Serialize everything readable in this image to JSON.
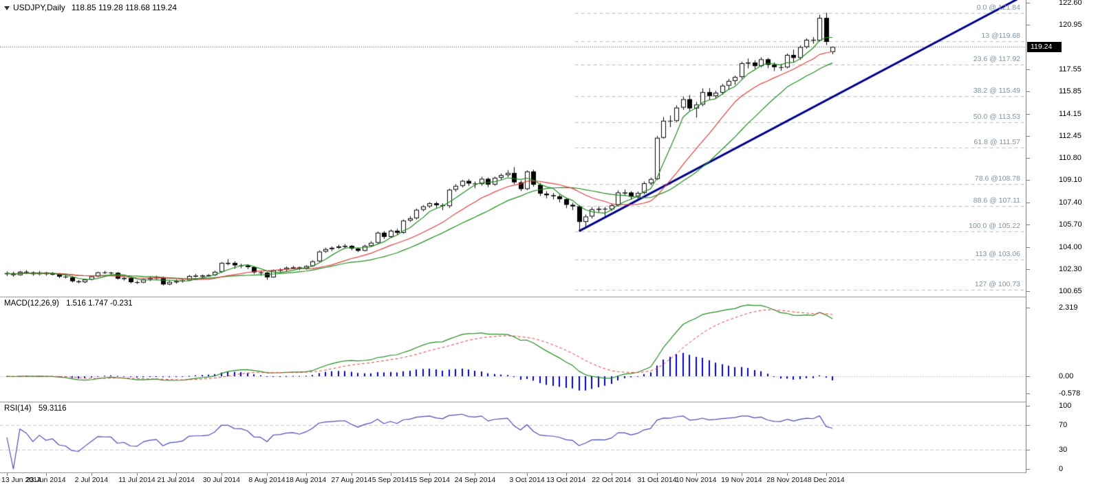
{
  "main": {
    "symbol_label": "USDJPY,Daily",
    "ohlc_label": "118.85 119.28 118.68 119.24",
    "current_price_label": "119.24"
  },
  "macd": {
    "label": "MACD(12,26,9)",
    "values_text": "1.516 1.747 -0.231"
  },
  "rsi": {
    "label": "RSI(14)",
    "value_text": "59.3116"
  },
  "colors": {
    "background": "#ffffff",
    "panel_border": "#9a9a9a",
    "axis_text": "#000000",
    "candle_outline": "#000000",
    "bull_body": "#ffffff",
    "bear_body": "#000000",
    "ma_green": "#1f8a1f",
    "ma_red": "#e03c3c",
    "trendline": "#00008c",
    "fib_line": "#b9b9b9",
    "fib_label": "#7e93a2",
    "macd_histogram": "#0000c0",
    "macd_line": "#1f8a1f",
    "macd_signal": "#e03c3c",
    "rsi_line": "#4a4ab4",
    "indicator_level": "#c8c8c8",
    "current_price_bg": "#000000",
    "current_price_text": "#ffffff",
    "bid_line": "#404040"
  },
  "chart_data": {
    "type": "candlestick",
    "title": "USDJPY,Daily",
    "symbol": "USDJPY",
    "timeframe": "Daily",
    "last_bar_ohlc": {
      "open": 118.85,
      "high": 119.28,
      "low": 118.68,
      "close": 119.24
    },
    "price_axis": {
      "min": 100.65,
      "max": 122.6,
      "current_price": 119.24,
      "tick_labels": [
        "122.60",
        "120.95",
        "117.55",
        "115.85",
        "114.15",
        "112.45",
        "110.80",
        "109.10",
        "107.40",
        "105.70",
        "104.00",
        "102.30",
        "100.65"
      ]
    },
    "time_axis_labels": [
      {
        "label": "13 Jun 2014",
        "index": 0
      },
      {
        "label": "23 Jun 2014",
        "index": 6
      },
      {
        "label": "2 Jul 2014",
        "index": 13
      },
      {
        "label": "11 Jul 2014",
        "index": 20
      },
      {
        "label": "21 Jul 2014",
        "index": 26
      },
      {
        "label": "30 Jul 2014",
        "index": 33
      },
      {
        "label": "8 Aug 2014",
        "index": 40
      },
      {
        "label": "18 Aug 2014",
        "index": 46
      },
      {
        "label": "27 Aug 2014",
        "index": 53
      },
      {
        "label": "5 Sep 2014",
        "index": 59
      },
      {
        "label": "15 Sep 2014",
        "index": 65
      },
      {
        "label": "24 Sep 2014",
        "index": 72
      },
      {
        "label": "3 Oct 2014",
        "index": 80
      },
      {
        "label": "13 Oct 2014",
        "index": 86
      },
      {
        "label": "22 Oct 2014",
        "index": 93
      },
      {
        "label": "31 Oct 2014",
        "index": 100
      },
      {
        "label": "10 Nov 2014",
        "index": 106
      },
      {
        "label": "19 Nov 2014",
        "index": 113
      },
      {
        "label": "28 Nov 2014",
        "index": 120
      },
      {
        "label": "8 Dec 2014",
        "index": 126
      }
    ],
    "moving_averages": [
      {
        "name": "ma-slow",
        "period": 21,
        "color": "#1f8a1f"
      },
      {
        "name": "ma-mid",
        "period": 13,
        "color": "#e03c3c"
      },
      {
        "name": "ma-fast",
        "period": 5,
        "color": "#1f8a1f"
      }
    ],
    "fibonacci_retracement": {
      "start_candle_index": 88,
      "levels": [
        {
          "label": "0.0 @ 121.84",
          "price": 121.84
        },
        {
          "label": "13 @119.68",
          "price": 119.68
        },
        {
          "label": "23.6 @ 117.92",
          "price": 117.92
        },
        {
          "label": "38.2 @ 115.49",
          "price": 115.49
        },
        {
          "label": "50.0 @ 113.53",
          "price": 113.53
        },
        {
          "label": "61.8 @ 111.57",
          "price": 111.57
        },
        {
          "label": "78.6 @108.78",
          "price": 108.78
        },
        {
          "label": "88.6 @ 107.11",
          "price": 107.11
        },
        {
          "label": "100.0 @ 105.22",
          "price": 105.22
        },
        {
          "label": "113 @ 103.06",
          "price": 103.06
        },
        {
          "label": "127 @ 100.73",
          "price": 100.73
        }
      ]
    },
    "trendline": {
      "from": {
        "candle_index": 88,
        "price": 105.22
      },
      "to": {
        "candle_index": 154,
        "price": 122.5
      },
      "color": "#00008c",
      "width": 3
    },
    "indicators": [
      {
        "type": "MACD",
        "params": [
          12,
          26,
          9
        ],
        "label": "MACD(12,26,9)",
        "current_values": [
          1.516,
          1.747,
          -0.231
        ],
        "axis_tick_labels": [
          "2.319",
          "0.00",
          "-0.578"
        ]
      },
      {
        "type": "RSI",
        "params": [
          14
        ],
        "label": "RSI(14)",
        "current_value": 59.3116,
        "levels": [
          70,
          30
        ],
        "axis_tick_labels": [
          "100",
          "70",
          "30",
          "0"
        ]
      }
    ],
    "candles_ohlc": [
      [
        101.95,
        102.15,
        101.8,
        102.02
      ],
      [
        102.02,
        102.12,
        101.75,
        101.87
      ],
      [
        101.87,
        102.2,
        101.82,
        102.13
      ],
      [
        102.13,
        102.25,
        101.95,
        102.08
      ],
      [
        102.08,
        102.15,
        101.82,
        101.94
      ],
      [
        101.94,
        102.18,
        101.85,
        102.07
      ],
      [
        102.07,
        102.12,
        101.83,
        101.94
      ],
      [
        101.94,
        102.1,
        101.85,
        101.98
      ],
      [
        101.98,
        102.04,
        101.64,
        101.75
      ],
      [
        101.75,
        101.88,
        101.61,
        101.7
      ],
      [
        101.7,
        101.78,
        101.31,
        101.4
      ],
      [
        101.4,
        101.5,
        101.24,
        101.33
      ],
      [
        101.33,
        101.6,
        101.26,
        101.53
      ],
      [
        101.53,
        101.85,
        101.47,
        101.77
      ],
      [
        101.77,
        102.13,
        101.72,
        102.08
      ],
      [
        102.08,
        102.18,
        101.97,
        102.06
      ],
      [
        102.06,
        102.12,
        101.92,
        102.05
      ],
      [
        102.05,
        102.1,
        101.52,
        101.6
      ],
      [
        101.6,
        101.73,
        101.45,
        101.65
      ],
      [
        101.65,
        101.7,
        101.24,
        101.33
      ],
      [
        101.33,
        101.45,
        101.19,
        101.3
      ],
      [
        101.3,
        101.6,
        101.25,
        101.56
      ],
      [
        101.56,
        101.75,
        101.42,
        101.66
      ],
      [
        101.66,
        101.82,
        101.55,
        101.7
      ],
      [
        101.7,
        101.76,
        101.08,
        101.16
      ],
      [
        101.16,
        101.45,
        101.09,
        101.35
      ],
      [
        101.35,
        101.53,
        101.22,
        101.4
      ],
      [
        101.4,
        101.55,
        101.29,
        101.46
      ],
      [
        101.46,
        101.88,
        101.4,
        101.8
      ],
      [
        101.8,
        101.96,
        101.7,
        101.83
      ],
      [
        101.83,
        101.92,
        101.66,
        101.84
      ],
      [
        101.84,
        101.94,
        101.74,
        101.87
      ],
      [
        101.87,
        102.2,
        101.8,
        102.12
      ],
      [
        102.12,
        102.87,
        102.04,
        102.8
      ],
      [
        102.8,
        103.09,
        102.62,
        102.8
      ],
      [
        102.8,
        102.93,
        102.35,
        102.61
      ],
      [
        102.61,
        102.74,
        102.4,
        102.6
      ],
      [
        102.6,
        102.7,
        102.32,
        102.48
      ],
      [
        102.48,
        102.55,
        101.96,
        102.08
      ],
      [
        102.08,
        102.18,
        101.82,
        102.06
      ],
      [
        102.06,
        102.12,
        101.51,
        101.7
      ],
      [
        101.7,
        102.3,
        101.68,
        102.24
      ],
      [
        102.24,
        102.39,
        102.1,
        102.28
      ],
      [
        102.28,
        102.53,
        102.16,
        102.43
      ],
      [
        102.43,
        102.57,
        102.31,
        102.46
      ],
      [
        102.46,
        102.52,
        102.25,
        102.36
      ],
      [
        102.36,
        102.63,
        102.28,
        102.56
      ],
      [
        102.56,
        103.0,
        102.5,
        102.92
      ],
      [
        102.92,
        103.75,
        102.86,
        103.66
      ],
      [
        103.66,
        103.96,
        103.56,
        103.85
      ],
      [
        103.85,
        104.05,
        103.7,
        103.95
      ],
      [
        103.95,
        104.19,
        103.86,
        104.05
      ],
      [
        104.05,
        104.23,
        103.93,
        104.1
      ],
      [
        104.1,
        104.16,
        103.76,
        103.89
      ],
      [
        103.89,
        103.97,
        103.62,
        103.72
      ],
      [
        103.72,
        104.18,
        103.68,
        104.09
      ],
      [
        104.09,
        104.45,
        104.02,
        104.33
      ],
      [
        104.33,
        105.18,
        104.26,
        105.1
      ],
      [
        105.1,
        105.22,
        104.62,
        104.78
      ],
      [
        104.78,
        105.35,
        104.7,
        105.25
      ],
      [
        105.25,
        105.4,
        104.92,
        105.09
      ],
      [
        105.09,
        106.1,
        105.02,
        106.02
      ],
      [
        106.02,
        106.36,
        105.92,
        106.2
      ],
      [
        106.2,
        106.94,
        106.1,
        106.84
      ],
      [
        106.84,
        107.2,
        106.72,
        107.1
      ],
      [
        107.1,
        107.42,
        106.98,
        107.34
      ],
      [
        107.34,
        107.45,
        106.99,
        107.19
      ],
      [
        107.19,
        107.34,
        106.81,
        107.12
      ],
      [
        107.12,
        108.45,
        106.98,
        108.37
      ],
      [
        108.37,
        108.8,
        108.22,
        108.66
      ],
      [
        108.66,
        109.13,
        108.54,
        109.04
      ],
      [
        109.04,
        109.18,
        108.66,
        108.84
      ],
      [
        108.84,
        109.0,
        108.48,
        108.8
      ],
      [
        108.8,
        109.35,
        108.68,
        109.2
      ],
      [
        109.2,
        109.3,
        108.56,
        108.76
      ],
      [
        108.76,
        109.37,
        108.68,
        109.28
      ],
      [
        109.28,
        109.6,
        109.12,
        109.48
      ],
      [
        109.48,
        109.86,
        109.32,
        109.65
      ],
      [
        109.65,
        110.09,
        108.8,
        108.93
      ],
      [
        108.93,
        109.06,
        108.27,
        108.42
      ],
      [
        108.42,
        109.85,
        108.33,
        109.76
      ],
      [
        109.76,
        109.9,
        108.6,
        108.75
      ],
      [
        108.75,
        108.88,
        107.88,
        108.07
      ],
      [
        108.07,
        108.25,
        107.72,
        107.95
      ],
      [
        107.95,
        108.12,
        107.63,
        107.87
      ],
      [
        107.87,
        108.0,
        107.4,
        107.65
      ],
      [
        107.65,
        107.75,
        106.97,
        107.22
      ],
      [
        107.22,
        107.38,
        106.82,
        107.1
      ],
      [
        107.1,
        107.2,
        105.22,
        105.92
      ],
      [
        105.92,
        106.48,
        105.45,
        106.33
      ],
      [
        106.33,
        107.05,
        106.18,
        106.88
      ],
      [
        106.88,
        107.1,
        106.66,
        106.92
      ],
      [
        106.92,
        107.06,
        106.36,
        106.88
      ],
      [
        106.88,
        107.33,
        106.76,
        107.18
      ],
      [
        107.18,
        108.32,
        107.08,
        108.16
      ],
      [
        108.16,
        108.38,
        107.92,
        108.16
      ],
      [
        108.16,
        108.26,
        107.63,
        107.84
      ],
      [
        107.84,
        108.23,
        107.7,
        108.12
      ],
      [
        108.12,
        108.99,
        108.02,
        108.86
      ],
      [
        108.86,
        109.3,
        108.72,
        109.18
      ],
      [
        109.18,
        112.47,
        109.1,
        112.32
      ],
      [
        112.32,
        113.9,
        112.25,
        113.62
      ],
      [
        113.62,
        114.02,
        113.14,
        113.6
      ],
      [
        113.6,
        114.8,
        113.52,
        114.62
      ],
      [
        114.62,
        115.45,
        114.45,
        115.26
      ],
      [
        115.26,
        115.58,
        114.38,
        114.56
      ],
      [
        114.56,
        115.05,
        113.86,
        114.85
      ],
      [
        114.85,
        116.08,
        114.72,
        115.8
      ],
      [
        115.8,
        116.1,
        115.22,
        115.5
      ],
      [
        115.5,
        115.9,
        115.28,
        115.75
      ],
      [
        115.75,
        116.42,
        115.6,
        116.29
      ],
      [
        116.29,
        116.8,
        115.96,
        116.65
      ],
      [
        116.65,
        117.05,
        116.35,
        116.95
      ],
      [
        116.95,
        118.12,
        116.82,
        118.0
      ],
      [
        118.0,
        118.35,
        117.6,
        118.05
      ],
      [
        118.05,
        118.22,
        117.55,
        117.78
      ],
      [
        117.78,
        118.45,
        117.68,
        118.3
      ],
      [
        118.3,
        118.4,
        117.62,
        117.88
      ],
      [
        117.88,
        118.05,
        117.4,
        117.7
      ],
      [
        117.7,
        117.94,
        117.42,
        117.68
      ],
      [
        117.68,
        118.75,
        117.6,
        118.63
      ],
      [
        118.63,
        119.03,
        118.08,
        118.4
      ],
      [
        118.4,
        119.35,
        118.25,
        119.23
      ],
      [
        119.23,
        119.9,
        119.1,
        119.78
      ],
      [
        119.78,
        119.98,
        119.48,
        119.72
      ],
      [
        119.72,
        121.69,
        119.65,
        121.45
      ],
      [
        121.45,
        121.84,
        119.38,
        119.62
      ],
      [
        118.85,
        119.28,
        118.68,
        119.24
      ]
    ]
  }
}
